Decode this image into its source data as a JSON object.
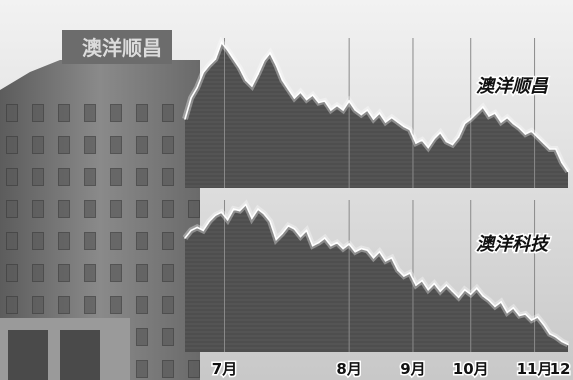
{
  "building_sign": "澳洋顺昌",
  "chart_data": [
    {
      "type": "area",
      "title": "澳洋顺昌",
      "x": [
        0,
        2,
        4,
        6,
        8,
        10,
        12,
        14,
        16,
        18,
        20,
        22,
        24,
        26,
        28,
        30,
        32,
        34,
        36,
        38,
        40,
        42,
        44,
        46,
        48,
        50,
        52,
        54,
        56,
        58,
        60,
        62,
        64,
        66,
        68,
        70,
        72,
        74,
        76,
        78,
        80,
        82,
        84,
        86,
        88,
        90,
        92,
        94,
        96,
        98,
        100,
        102,
        104,
        106,
        108,
        110,
        112,
        114,
        116,
        118,
        120,
        122,
        124,
        126
      ],
      "values": [
        0.46,
        0.6,
        0.67,
        0.77,
        0.82,
        0.86,
        0.97,
        0.92,
        0.86,
        0.8,
        0.72,
        0.68,
        0.76,
        0.85,
        0.9,
        0.82,
        0.72,
        0.66,
        0.6,
        0.64,
        0.59,
        0.62,
        0.57,
        0.58,
        0.52,
        0.55,
        0.52,
        0.58,
        0.52,
        0.49,
        0.52,
        0.46,
        0.5,
        0.44,
        0.47,
        0.44,
        0.41,
        0.39,
        0.3,
        0.32,
        0.27,
        0.33,
        0.37,
        0.31,
        0.29,
        0.34,
        0.43,
        0.46,
        0.5,
        0.54,
        0.48,
        0.5,
        0.44,
        0.47,
        0.43,
        0.4,
        0.36,
        0.38,
        0.34,
        0.3,
        0.26,
        0.26,
        0.17,
        0.11
      ],
      "ylim": [
        0,
        1
      ]
    },
    {
      "type": "area",
      "title": "澳洋科技",
      "x": [
        0,
        2,
        4,
        6,
        8,
        10,
        12,
        14,
        16,
        18,
        20,
        22,
        24,
        26,
        28,
        30,
        32,
        34,
        36,
        38,
        40,
        42,
        44,
        46,
        48,
        50,
        52,
        54,
        56,
        58,
        60,
        62,
        64,
        66,
        68,
        70,
        72,
        74,
        76,
        78,
        80,
        82,
        84,
        86,
        88,
        90,
        92,
        94,
        96,
        98,
        100,
        102,
        104,
        106,
        108,
        110,
        112,
        114,
        116,
        118,
        120,
        122,
        124,
        126
      ],
      "values": [
        0.75,
        0.8,
        0.82,
        0.8,
        0.86,
        0.9,
        0.92,
        0.87,
        0.94,
        0.93,
        0.97,
        0.88,
        0.94,
        0.91,
        0.86,
        0.74,
        0.78,
        0.83,
        0.81,
        0.76,
        0.8,
        0.7,
        0.72,
        0.75,
        0.7,
        0.72,
        0.68,
        0.71,
        0.66,
        0.68,
        0.67,
        0.62,
        0.66,
        0.6,
        0.62,
        0.54,
        0.5,
        0.52,
        0.44,
        0.47,
        0.41,
        0.45,
        0.4,
        0.44,
        0.4,
        0.36,
        0.41,
        0.38,
        0.42,
        0.37,
        0.34,
        0.3,
        0.33,
        0.26,
        0.29,
        0.24,
        0.25,
        0.21,
        0.23,
        0.18,
        0.12,
        0.1,
        0.07,
        0.05
      ],
      "ylim": [
        0,
        1
      ]
    }
  ],
  "x_axis": {
    "ticks": [
      {
        "label": "7月",
        "x": 13
      },
      {
        "label": "8月",
        "x": 54
      },
      {
        "label": "9月",
        "x": 75
      },
      {
        "label": "10月",
        "x": 94
      },
      {
        "label": "11月",
        "x": 115
      },
      {
        "label": "12",
        "x": 126
      }
    ],
    "xlim": [
      0,
      126
    ]
  },
  "colors": {
    "area": "#4e4e4e",
    "line": "#ffffff",
    "grid": "#8a8a8a",
    "sky": "#eeeeee",
    "building": "#7c7c7c"
  }
}
